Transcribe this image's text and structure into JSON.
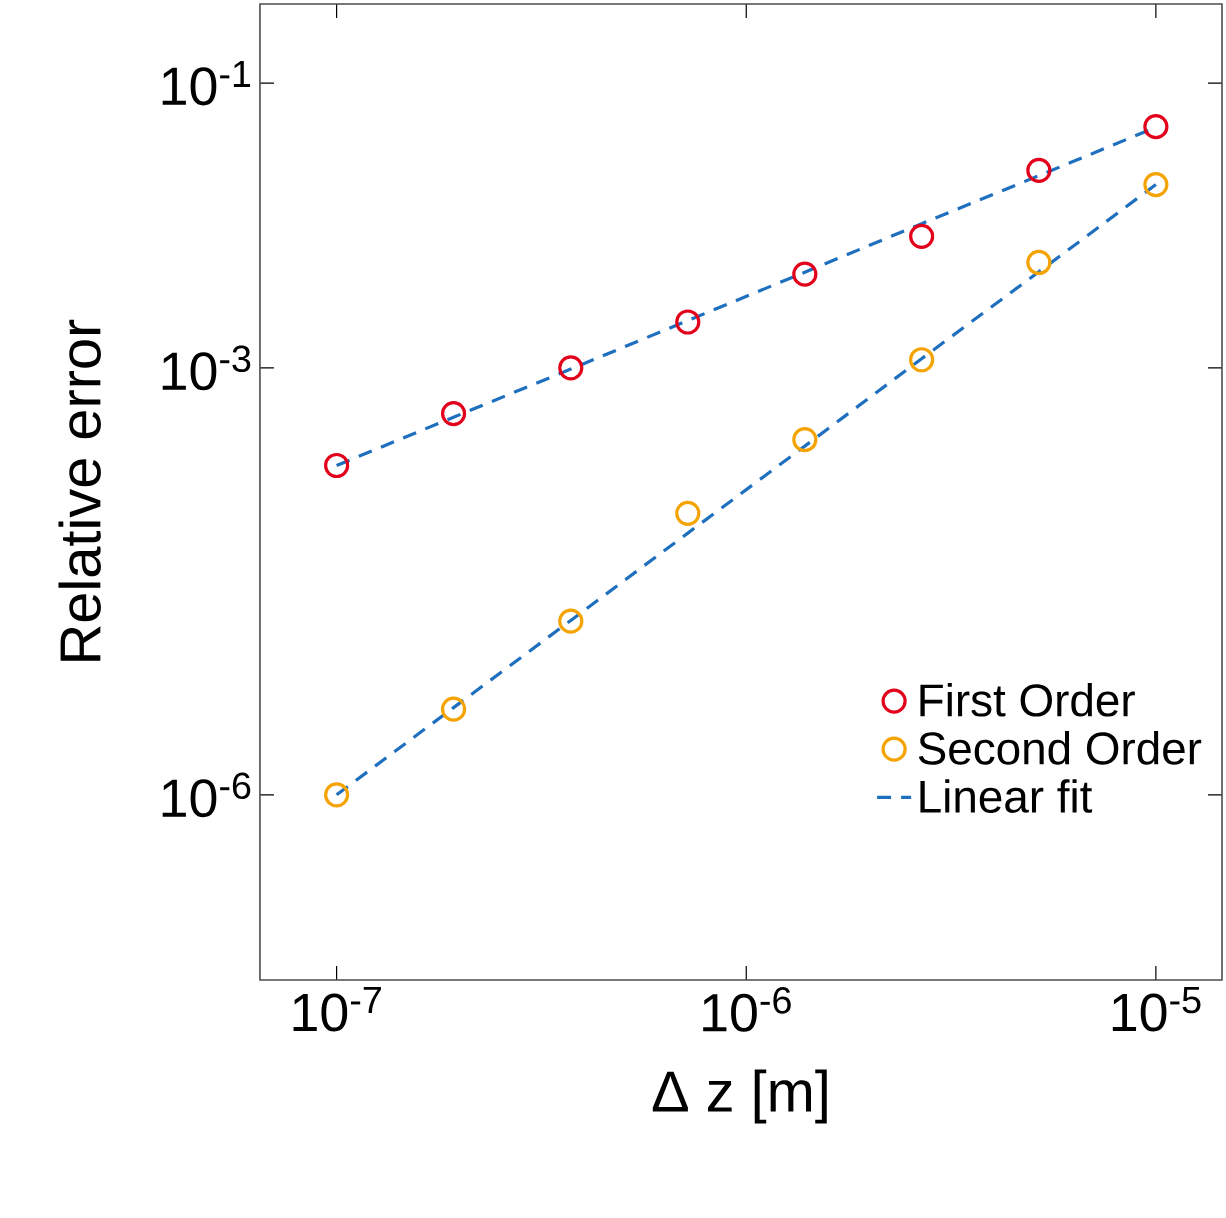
{
  "chart_data": {
    "type": "scatter",
    "xlabel": "Δ z [m]",
    "ylabel": "Relative error",
    "log": "xy",
    "grid": false,
    "legend": "bottom right",
    "xlim": [
      6.5e-08,
      1.45e-05
    ],
    "ylim": [
      5e-08,
      0.36
    ],
    "xticks": [
      {
        "value": 1e-07,
        "label": "10$^{-7}$"
      },
      {
        "value": 1e-06,
        "label": "10$^{-6}$"
      },
      {
        "value": 1e-05,
        "label": "10$^{-5}$"
      }
    ],
    "yticks": [
      {
        "value": 1e-06,
        "label": "10$^{-6}$"
      },
      {
        "value": 0.001,
        "label": "10$^{-3}$"
      },
      {
        "value": 0.1,
        "label": "10$^{-1}$"
      }
    ],
    "x": [
      1e-07,
      1.93e-07,
      3.73e-07,
      7.2e-07,
      1.39e-06,
      2.68e-06,
      5.18e-06,
      1e-05
    ],
    "series": [
      {
        "name": "First Order",
        "marker": "circle",
        "color": "#e3001b",
        "values": [
          0.000206,
          0.000477,
          0.001,
          0.0021,
          0.00455,
          0.0084,
          0.0244,
          0.0495
        ]
      },
      {
        "name": "Second Order",
        "marker": "circle",
        "color": "#f5a300",
        "values": [
          1e-06,
          4e-06,
          1.66e-05,
          9.5e-05,
          0.000313,
          0.00114,
          0.0055,
          0.0194
        ]
      },
      {
        "name": "Linear fit",
        "type": "line",
        "line_style": "dashed",
        "marker": "none",
        "color": "#1f6fbf",
        "values": [
          0.000206,
          0.00045,
          0.00098,
          0.00215,
          0.0047,
          0.0103,
          0.0224,
          0.049
        ]
      },
      {
        "type": "line",
        "line_style": "dashed",
        "marker": "none",
        "color": "#1f6fbf",
        "values": [
          1e-06,
          4.1e-06,
          1.68e-05,
          6.9e-05,
          0.000282,
          0.00116,
          0.00473,
          0.0194
        ]
      }
    ]
  }
}
